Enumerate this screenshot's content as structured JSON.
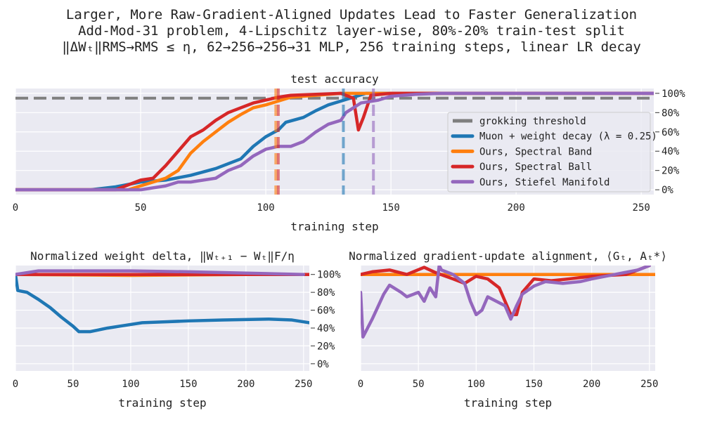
{
  "title": [
    "Larger, More Raw-Gradient-Aligned Updates Lead to Faster Generalization",
    "Add-Mod-31 problem, 4-Lipschitz layer-wise, 80%-20% train-test split",
    "‖ΔWₜ‖RMS→RMS ≤ η, 62→256→256→31 MLP, 256 training steps, linear LR decay"
  ],
  "colors": {
    "muon": "#1f77b4",
    "band": "#ff7f0e",
    "ball": "#d62728",
    "stiefel": "#9467bd",
    "threshold": "#7f7f7f"
  },
  "chart_data": [
    {
      "type": "line",
      "title": "test accuracy",
      "xlabel": "training step",
      "ylabel": "",
      "xlim": [
        0,
        255
      ],
      "ylim": [
        -5,
        105
      ],
      "xticks": [
        0,
        50,
        100,
        150,
        200,
        250
      ],
      "yticks": [
        0,
        20,
        40,
        60,
        80,
        100
      ],
      "ytick_labels": [
        "0%",
        "20%",
        "40%",
        "60%",
        "80%",
        "100%"
      ],
      "legend_position": "center-right",
      "threshold": {
        "name": "grokking threshold",
        "value": 95
      },
      "vlines": [
        {
          "series": "band",
          "x": 104
        },
        {
          "series": "ball",
          "x": 105
        },
        {
          "series": "muon",
          "x": 131
        },
        {
          "series": "stiefel",
          "x": 143
        }
      ],
      "series": [
        {
          "key": "muon",
          "name": "Muon + weight decay (λ = 0.25)",
          "x": [
            0,
            30,
            40,
            50,
            60,
            70,
            80,
            90,
            95,
            100,
            105,
            108,
            115,
            120,
            125,
            130,
            135,
            140,
            255
          ],
          "y": [
            0,
            0,
            3,
            8,
            10,
            15,
            22,
            32,
            45,
            55,
            62,
            70,
            75,
            82,
            88,
            92,
            96,
            100,
            100
          ]
        },
        {
          "key": "band",
          "name": "Ours, Spectral Band",
          "x": [
            0,
            45,
            55,
            60,
            65,
            70,
            75,
            80,
            85,
            90,
            95,
            100,
            105,
            110,
            120,
            130,
            255
          ],
          "y": [
            0,
            0,
            8,
            12,
            20,
            38,
            50,
            60,
            70,
            78,
            85,
            88,
            92,
            96,
            98,
            100,
            100
          ]
        },
        {
          "key": "ball",
          "name": "Ours, Spectral Ball",
          "x": [
            0,
            40,
            45,
            50,
            55,
            60,
            65,
            70,
            75,
            80,
            85,
            90,
            95,
            100,
            105,
            110,
            120,
            130,
            135,
            137,
            139,
            142,
            150,
            255
          ],
          "y": [
            0,
            0,
            5,
            10,
            12,
            25,
            40,
            55,
            62,
            72,
            80,
            85,
            90,
            93,
            96,
            98,
            99,
            100,
            95,
            62,
            75,
            98,
            100,
            100
          ]
        },
        {
          "key": "stiefel",
          "name": "Ours, Stiefel Manifold",
          "x": [
            0,
            50,
            55,
            60,
            65,
            70,
            75,
            80,
            85,
            90,
            95,
            100,
            105,
            110,
            115,
            120,
            125,
            130,
            132,
            138,
            145,
            150,
            160,
            170,
            255
          ],
          "y": [
            0,
            0,
            2,
            4,
            8,
            8,
            10,
            12,
            20,
            25,
            35,
            42,
            45,
            45,
            50,
            60,
            68,
            72,
            80,
            90,
            93,
            97,
            99,
            100,
            100
          ]
        }
      ]
    },
    {
      "type": "line",
      "title": "Normalized weight delta, ‖Wₜ₊₁ − Wₜ‖F/η",
      "xlabel": "training step",
      "xlim": [
        0,
        255
      ],
      "ylim": [
        -8,
        110
      ],
      "xticks": [
        0,
        50,
        100,
        150,
        200,
        250
      ],
      "yticks": [
        0,
        20,
        40,
        60,
        80,
        100
      ],
      "ytick_labels": [
        "0%",
        "20%",
        "40%",
        "60%",
        "80%",
        "100%"
      ],
      "series": [
        {
          "key": "muon",
          "x": [
            0,
            2,
            10,
            20,
            30,
            40,
            50,
            55,
            65,
            80,
            95,
            110,
            130,
            150,
            180,
            220,
            240,
            255
          ],
          "y": [
            100,
            82,
            80,
            72,
            63,
            52,
            42,
            36,
            36,
            40,
            43,
            46,
            47,
            48,
            49,
            50,
            49,
            46
          ]
        },
        {
          "key": "band",
          "x": [
            0,
            100,
            200,
            255
          ],
          "y": [
            100,
            99,
            100,
            100
          ]
        },
        {
          "key": "ball",
          "x": [
            0,
            100,
            200,
            255
          ],
          "y": [
            100,
            100,
            100,
            100
          ]
        },
        {
          "key": "stiefel",
          "x": [
            0,
            20,
            100,
            150,
            250
          ],
          "y": [
            100,
            104,
            104,
            103,
            100
          ]
        }
      ]
    },
    {
      "type": "line",
      "title": "Normalized gradient-update alignment, ⟨Gₜ, Aₜ*⟩",
      "xlabel": "training step",
      "xlim": [
        0,
        255
      ],
      "ylim": [
        -8,
        110
      ],
      "xticks": [
        0,
        50,
        100,
        150,
        200,
        250
      ],
      "series": [
        {
          "key": "band",
          "x": [
            0,
            255
          ],
          "y": [
            100,
            100
          ]
        },
        {
          "key": "ball",
          "x": [
            0,
            10,
            25,
            40,
            55,
            65,
            80,
            90,
            100,
            110,
            120,
            130,
            135,
            140,
            150,
            165,
            180,
            200,
            230,
            250
          ],
          "y": [
            100,
            103,
            105,
            100,
            108,
            102,
            95,
            90,
            98,
            95,
            85,
            55,
            55,
            80,
            95,
            93,
            95,
            98,
            100,
            110
          ]
        },
        {
          "key": "stiefel",
          "x": [
            0,
            2,
            10,
            20,
            25,
            35,
            40,
            50,
            55,
            60,
            65,
            68,
            70,
            80,
            90,
            95,
            100,
            105,
            110,
            125,
            130,
            135,
            140,
            150,
            160,
            175,
            190,
            200,
            220,
            240,
            250
          ],
          "y": [
            80,
            30,
            50,
            78,
            88,
            80,
            75,
            80,
            70,
            85,
            75,
            110,
            105,
            100,
            90,
            70,
            55,
            60,
            75,
            65,
            50,
            65,
            78,
            87,
            92,
            90,
            92,
            95,
            100,
            105,
            110
          ]
        }
      ]
    }
  ]
}
